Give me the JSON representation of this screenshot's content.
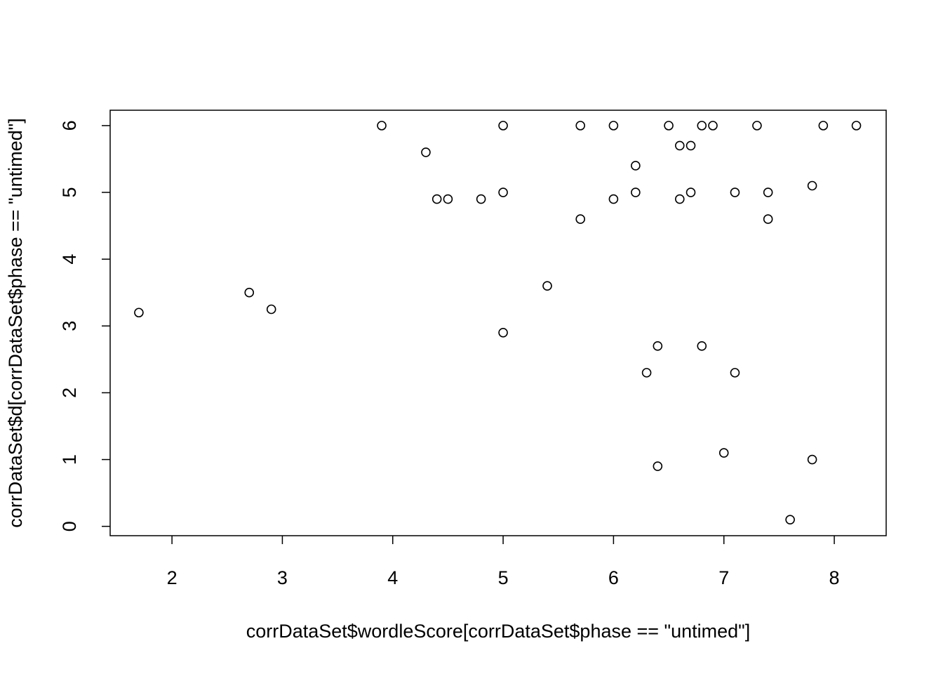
{
  "chart_data": {
    "type": "scatter",
    "xlabel": "corrDataSet$wordleScore[corrDataSet$phase == \"untimed\"]",
    "ylabel": "corrDataSet$d[corrDataSet$phase == \"untimed\"]",
    "x": [
      1.7,
      2.7,
      2.9,
      3.9,
      4.3,
      4.4,
      4.5,
      4.8,
      5,
      5,
      5,
      5.4,
      5.7,
      5.7,
      6,
      6,
      6.2,
      6.2,
      6.3,
      6.4,
      6.4,
      6.5,
      6.6,
      6.6,
      6.7,
      6.7,
      6.8,
      6.8,
      6.9,
      7,
      7.1,
      7.1,
      7.3,
      7.4,
      7.4,
      7.6,
      7.8,
      7.8,
      7.9,
      8.2
    ],
    "values": [
      3.2,
      3.5,
      3.25,
      6,
      5.6,
      4.9,
      4.9,
      4.9,
      6,
      5,
      2.9,
      3.6,
      6,
      4.6,
      6,
      4.9,
      5.4,
      5,
      2.3,
      2.7,
      0.9,
      6,
      5.7,
      4.9,
      5.7,
      5,
      6,
      2.7,
      6,
      1.1,
      5,
      2.3,
      6,
      5,
      4.6,
      0.1,
      5.1,
      1,
      6,
      6
    ],
    "color": "#000000",
    "xlim": [
      1.44,
      8.47
    ],
    "ylim": [
      -0.14,
      6.23
    ],
    "xticks": [
      2,
      3,
      4,
      5,
      6,
      7,
      8
    ],
    "yticks": [
      0,
      1,
      2,
      3,
      4,
      5,
      6
    ]
  }
}
